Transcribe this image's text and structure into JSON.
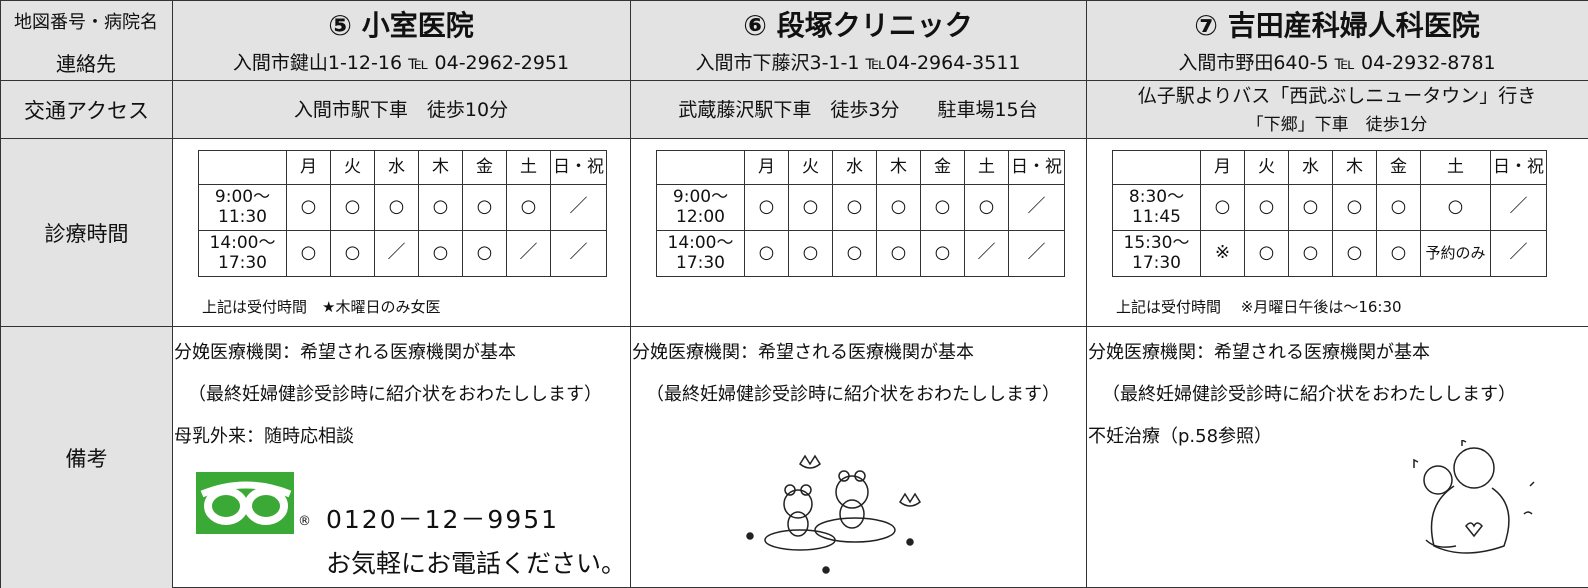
{
  "header": {
    "label_line1": "地図番号・病院名",
    "label_line2": "連絡先"
  },
  "row_labels": {
    "access": "交通アクセス",
    "hours": "診療時間",
    "notes": "備考"
  },
  "clinics": [
    {
      "name": "⑤ 小室医院",
      "address": "入間市鍵山1-12-16 ℡ 04-2962-2951",
      "access": [
        "入間市駅下車　徒歩10分"
      ],
      "days": [
        "月",
        "火",
        "水",
        "木",
        "金",
        "土",
        "日・祝"
      ],
      "hours": [
        {
          "time": [
            "9:00～",
            "11:30"
          ],
          "marks": [
            "○",
            "○",
            "○",
            "○",
            "○",
            "○",
            "／"
          ]
        },
        {
          "time": [
            "14:00～",
            "17:30"
          ],
          "marks": [
            "○",
            "○",
            "／",
            "○",
            "○",
            "／",
            "／"
          ]
        }
      ],
      "hours_note": "上記は受付時間　★木曜日のみ女医",
      "notes": [
        "分娩医療機関：希望される医療機関が基本",
        "（最終妊婦健診受診時に紹介状をおわたしします）",
        "母乳外来：随時応相談"
      ],
      "registered_mark": "®",
      "freedial": "0120－12－9951",
      "freedial_note": "お気軽にお電話ください。"
    },
    {
      "name": "⑥ 段塚クリニック",
      "address": "入間市下藤沢3-1-1 ℡04-2964-3511",
      "access": [
        "武蔵藤沢駅下車　徒歩3分　　駐車場15台"
      ],
      "days": [
        "月",
        "火",
        "水",
        "木",
        "金",
        "土",
        "日・祝"
      ],
      "hours": [
        {
          "time": [
            "9:00～",
            "12:00"
          ],
          "marks": [
            "○",
            "○",
            "○",
            "○",
            "○",
            "○",
            "／"
          ]
        },
        {
          "time": [
            "14:00～",
            "17:30"
          ],
          "marks": [
            "○",
            "○",
            "○",
            "○",
            "○",
            "／",
            "／"
          ]
        }
      ],
      "notes": [
        "分娩医療機関：希望される医療機関が基本",
        "（最終妊婦健診受診時に紹介状をおわたしします）"
      ]
    },
    {
      "name": "⑦ 吉田産科婦人科医院",
      "address": "入間市野田640-5 ℡ 04-2932-8781",
      "access": [
        "仏子駅よりバス「西武ぶしニュータウン」行き",
        "「下郷」下車　徒歩1分"
      ],
      "days": [
        "月",
        "火",
        "水",
        "木",
        "金",
        "土",
        "日・祝"
      ],
      "hours": [
        {
          "time": [
            "8:30～",
            "11:45"
          ],
          "marks": [
            "○",
            "○",
            "○",
            "○",
            "○",
            "○",
            "／"
          ]
        },
        {
          "time": [
            "15:30～",
            "17:30"
          ],
          "marks": [
            "※",
            "○",
            "○",
            "○",
            "○",
            "予約のみ",
            "／"
          ]
        }
      ],
      "hours_note": "上記は受付時間　 ※月曜日午後は～16:30",
      "notes": [
        "分娩医療機関：希望される医療機関が基本",
        "（最終妊婦健診受診時に紹介状をおわたしします）",
        "不妊治療（p.58参照）"
      ]
    }
  ]
}
